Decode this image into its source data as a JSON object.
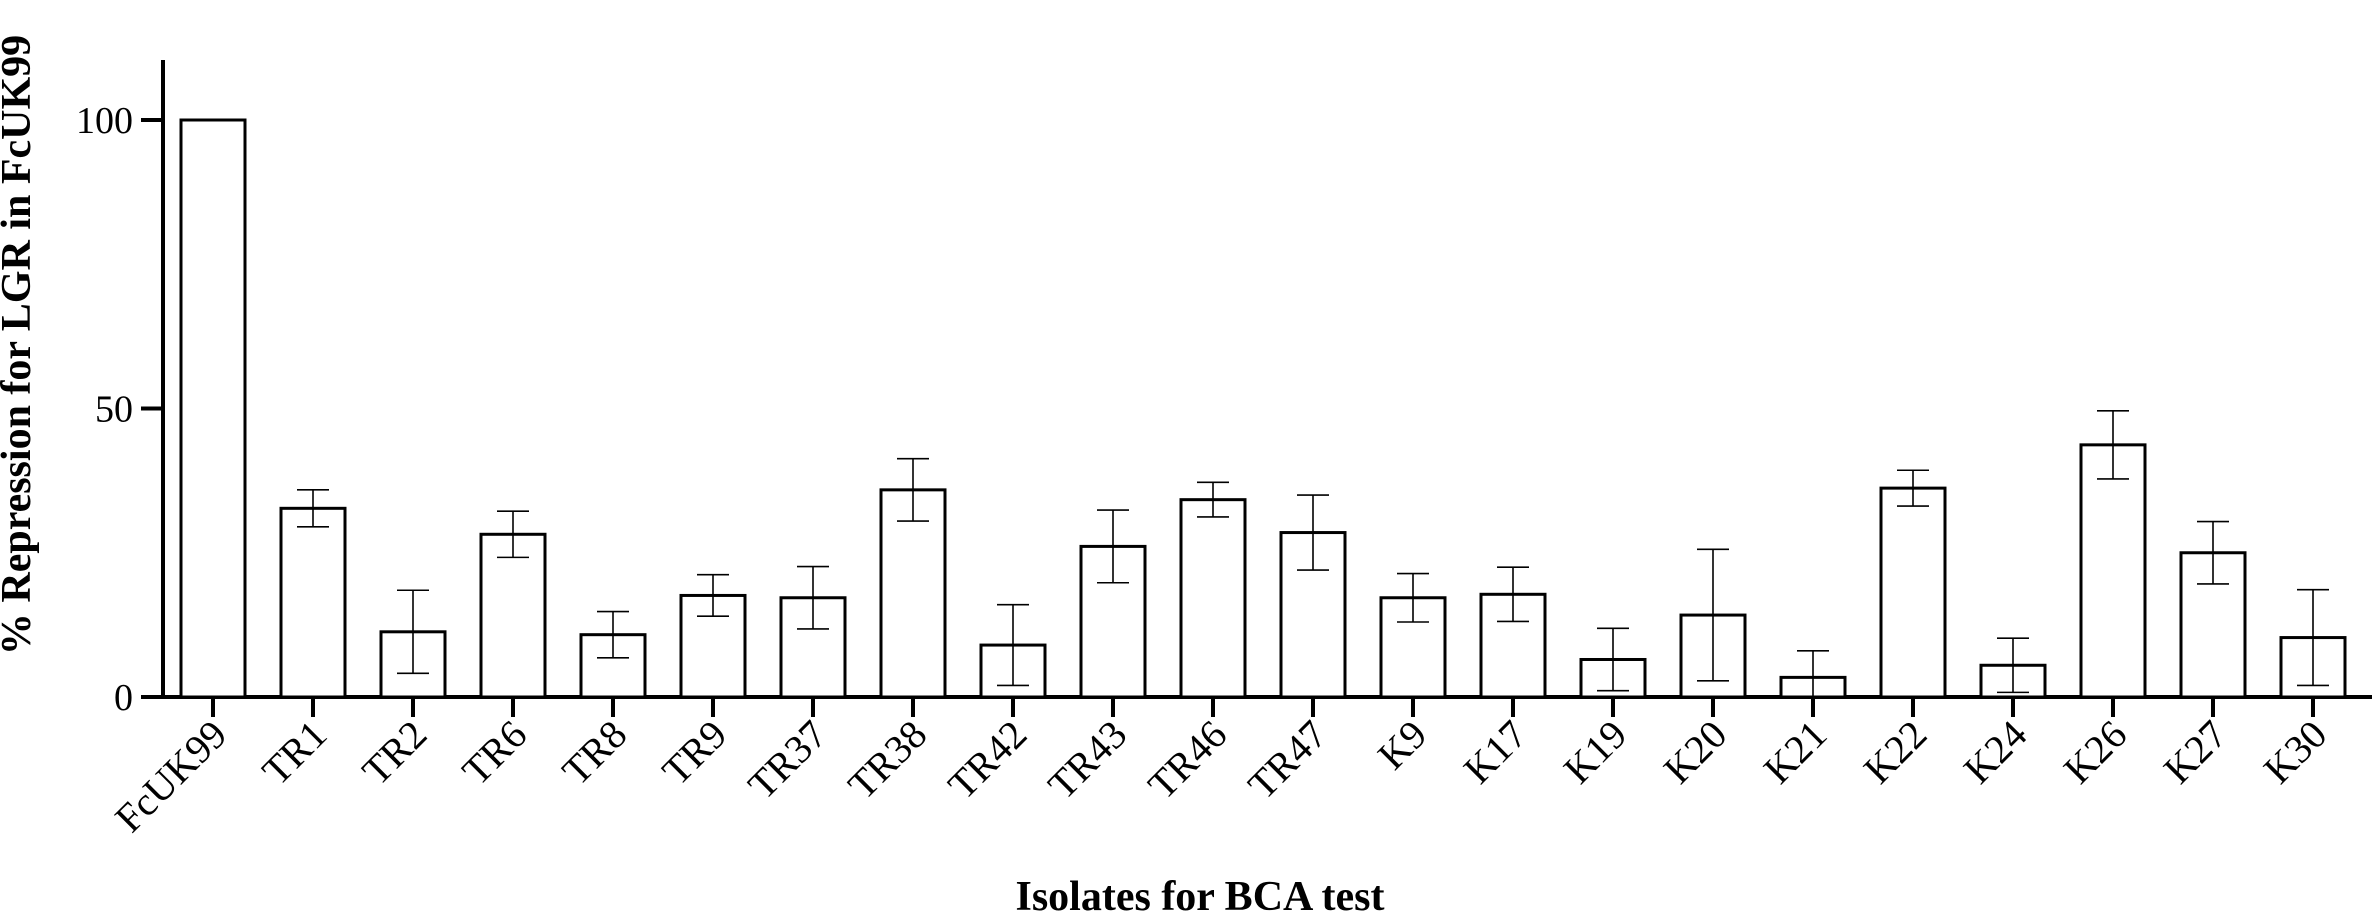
{
  "chart_data": {
    "type": "bar",
    "title": "",
    "xlabel": "Isolates for BCA test",
    "ylabel": "% Repression for LGR in FcUK99",
    "ylim": [
      0,
      110
    ],
    "yticks": [
      0,
      50,
      100
    ],
    "ytick_labels": [
      "0",
      "50",
      "100"
    ],
    "grid": false,
    "categories": [
      "FcUK99",
      "TR1",
      "TR2",
      "TR6",
      "TR8",
      "TR9",
      "TR37",
      "TR38",
      "TR42",
      "TR43",
      "TR46",
      "TR47",
      "K9",
      "K17",
      "K19",
      "K20",
      "K21",
      "K22",
      "K24",
      "K26",
      "K27",
      "K30"
    ],
    "values": [
      100,
      32.7,
      11.3,
      28.2,
      10.8,
      17.6,
      17.2,
      35.9,
      9.0,
      26.1,
      34.2,
      28.5,
      17.2,
      17.8,
      6.5,
      14.2,
      3.4,
      36.2,
      5.5,
      43.7,
      25.0,
      10.3
    ],
    "errors": [
      0,
      3.2,
      7.2,
      4.0,
      4.0,
      3.6,
      5.4,
      5.4,
      7.0,
      6.3,
      3.0,
      6.5,
      4.2,
      4.7,
      5.4,
      11.4,
      4.6,
      3.1,
      4.7,
      5.9,
      5.4,
      8.3
    ]
  }
}
